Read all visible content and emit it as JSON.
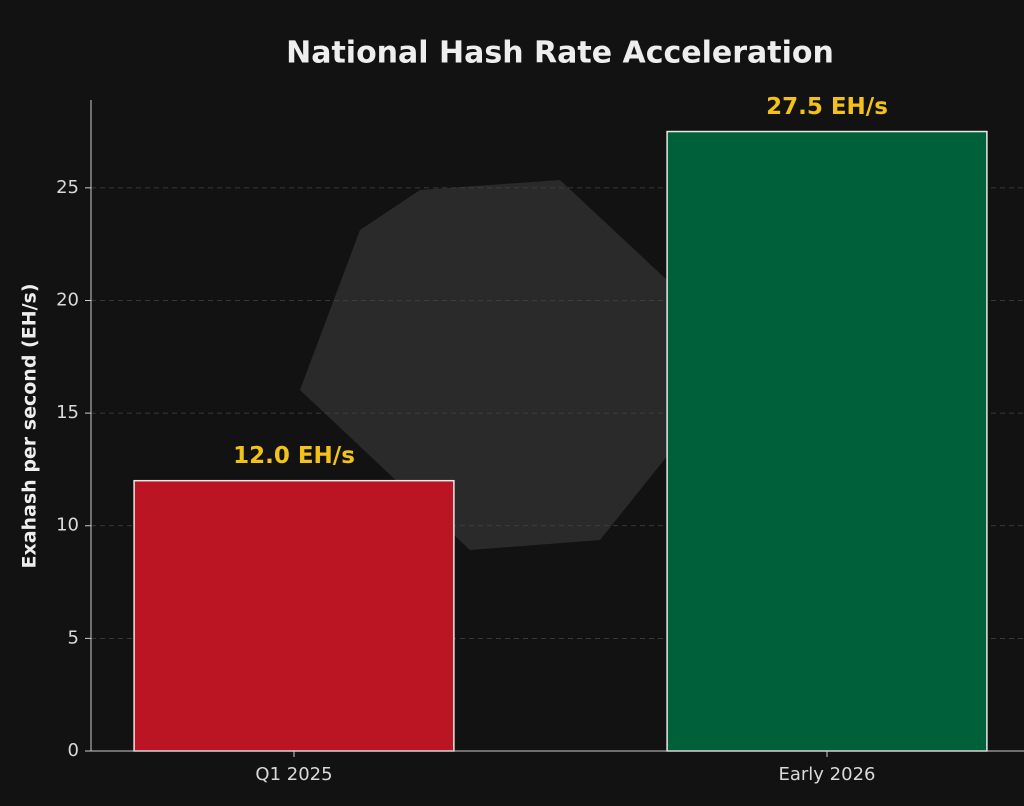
{
  "chart_data": {
    "type": "bar",
    "title": "National Hash Rate Acceleration",
    "y_label": "Exahash per second (EH/s)",
    "categories": [
      "Q1 2025",
      "Early 2026"
    ],
    "values": [
      12.0,
      27.5
    ],
    "value_labels": [
      "12.0 EH/s",
      "27.5 EH/s"
    ],
    "colors": [
      "#bb1422",
      "#006039"
    ],
    "ylim": [
      0,
      28.9
    ],
    "yticks": [
      0,
      5,
      10,
      15,
      20,
      25
    ],
    "grid": true
  }
}
